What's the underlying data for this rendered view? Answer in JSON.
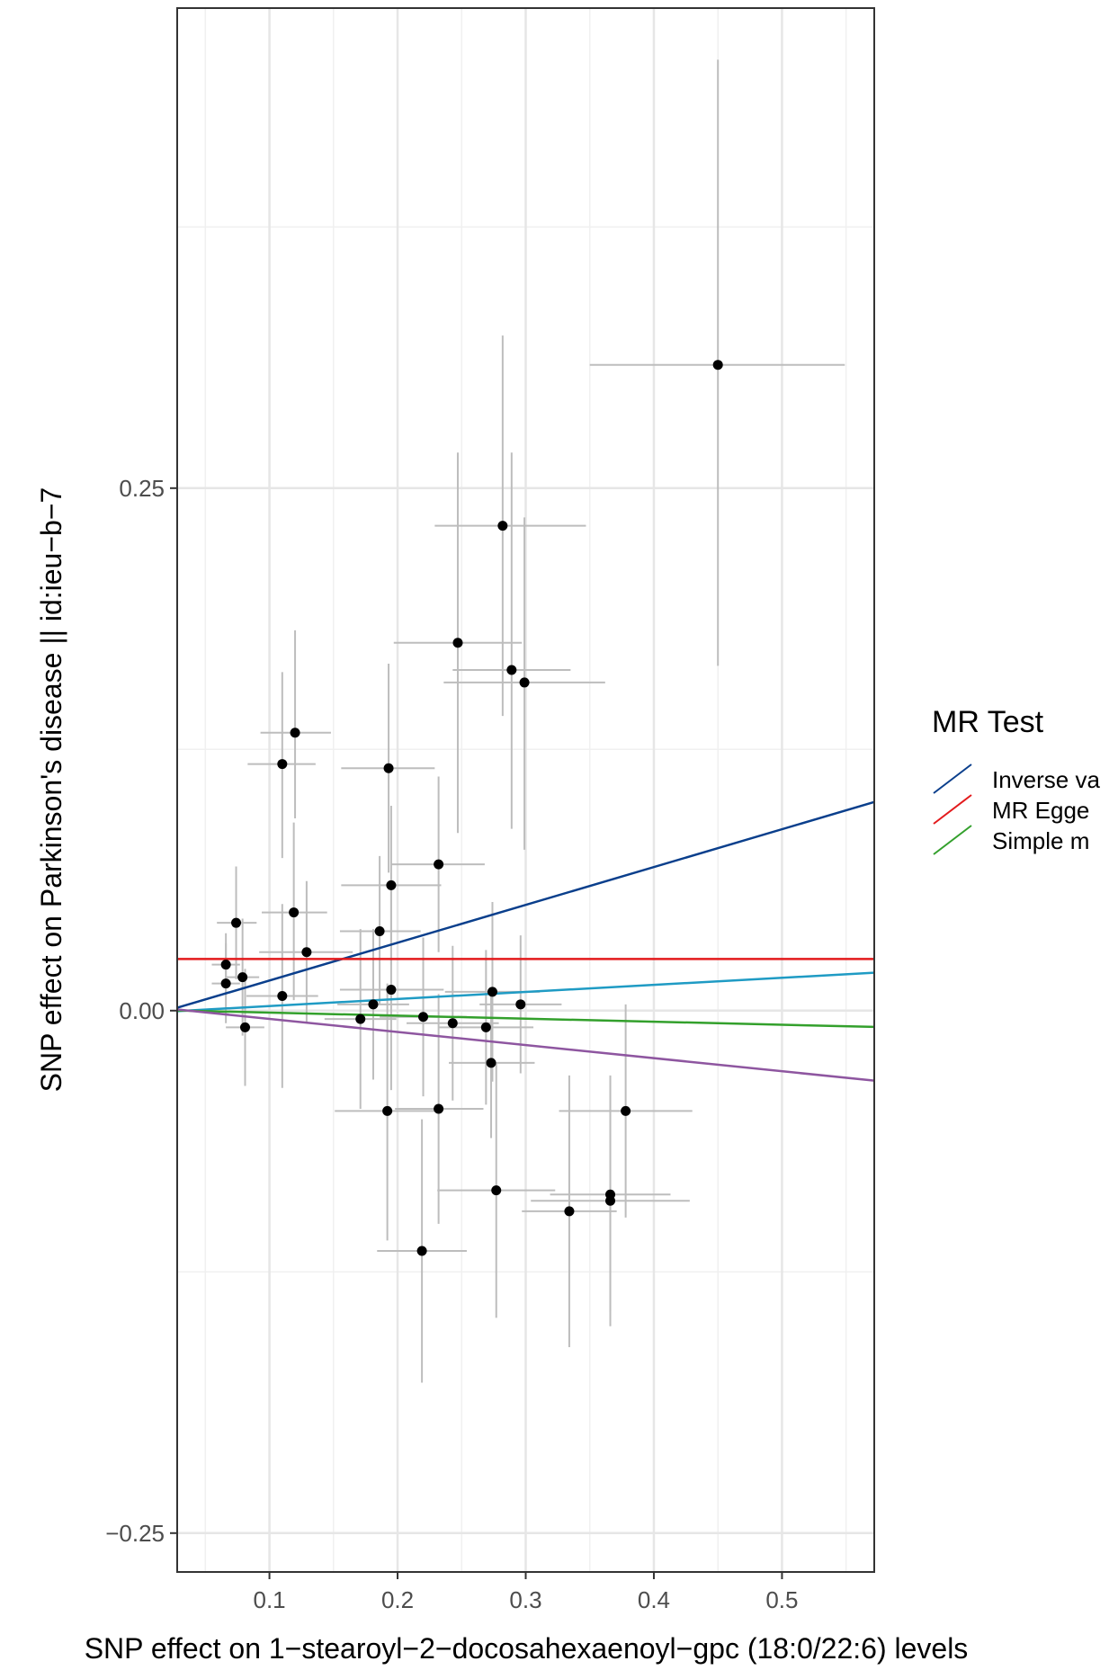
{
  "chart_data": {
    "type": "scatter",
    "title": "",
    "xlabel": "SNP effect on 1−stearoyl−2−docosahexaenoyl−gpc (18:0/22:6) levels",
    "ylabel": "SNP effect on Parkinson's disease || id:ieu−b−7",
    "xlim": [
      0.028,
      0.572
    ],
    "ylim": [
      -0.2686,
      0.4797
    ],
    "x_ticks": [
      {
        "value": 0.1,
        "label": "0.1"
      },
      {
        "value": 0.2,
        "label": "0.2"
      },
      {
        "value": 0.3,
        "label": "0.3"
      },
      {
        "value": 0.4,
        "label": "0.4"
      },
      {
        "value": 0.5,
        "label": "0.5"
      }
    ],
    "y_ticks": [
      {
        "value": 0.25,
        "label": "0.25"
      },
      {
        "value": 0.0,
        "label": "0.00"
      },
      {
        "value": -0.25,
        "label": "−0.25"
      }
    ],
    "x_minor_grid": [
      0.05,
      0.15,
      0.25,
      0.35,
      0.45,
      0.55
    ],
    "y_minor_grid": [
      0.375,
      0.125,
      -0.125
    ],
    "grid": true,
    "legend": {
      "title": "MR Test",
      "position": "right",
      "entries": [
        {
          "label": "Inverse va",
          "color": "#0a3f8c"
        },
        {
          "label": "MR Egge",
          "color": "#e31a1c"
        },
        {
          "label": "Simple m",
          "color": "#33a02c"
        }
      ]
    },
    "lines": [
      {
        "label": "Inverse va",
        "color": "#0a3f8c",
        "y_intercept": -0.0037,
        "slope": 0.181
      },
      {
        "label": "MR Egge",
        "color": "#e31a1c",
        "y_intercept": 0.0247,
        "slope": 0.0
      },
      {
        "label": "",
        "color": "#1f9bc4",
        "y_intercept": -0.0012,
        "slope": 0.0338
      },
      {
        "label": "Simple m",
        "color": "#33a02c",
        "y_intercept": 0.0005,
        "slope": -0.0145
      },
      {
        "label": "",
        "color": "#8e56a0",
        "y_intercept": 0.0023,
        "slope": -0.0626
      }
    ],
    "points": [
      {
        "x": 0.45,
        "y": 0.309,
        "xlo": 0.35,
        "xhi": 0.549,
        "ylo": 0.165,
        "yhi": 0.455
      },
      {
        "x": 0.282,
        "y": 0.232,
        "xlo": 0.229,
        "xhi": 0.347,
        "ylo": 0.141,
        "yhi": 0.323
      },
      {
        "x": 0.247,
        "y": 0.176,
        "xlo": 0.197,
        "xhi": 0.297,
        "ylo": 0.085,
        "yhi": 0.267
      },
      {
        "x": 0.289,
        "y": 0.163,
        "xlo": 0.243,
        "xhi": 0.335,
        "ylo": 0.087,
        "yhi": 0.267
      },
      {
        "x": 0.299,
        "y": 0.157,
        "xlo": 0.236,
        "xhi": 0.362,
        "ylo": 0.077,
        "yhi": 0.236
      },
      {
        "x": 0.12,
        "y": 0.133,
        "xlo": 0.093,
        "xhi": 0.148,
        "ylo": 0.092,
        "yhi": 0.182
      },
      {
        "x": 0.11,
        "y": 0.118,
        "xlo": 0.083,
        "xhi": 0.136,
        "ylo": 0.073,
        "yhi": 0.162
      },
      {
        "x": 0.193,
        "y": 0.116,
        "xlo": 0.156,
        "xhi": 0.229,
        "ylo": 0.066,
        "yhi": 0.166
      },
      {
        "x": 0.232,
        "y": 0.07,
        "xlo": 0.195,
        "xhi": 0.268,
        "ylo": 0.028,
        "yhi": 0.112
      },
      {
        "x": 0.195,
        "y": 0.06,
        "xlo": 0.156,
        "xhi": 0.234,
        "ylo": 0.022,
        "yhi": 0.098
      },
      {
        "x": 0.119,
        "y": 0.047,
        "xlo": 0.094,
        "xhi": 0.145,
        "ylo": 0.005,
        "yhi": 0.09
      },
      {
        "x": 0.074,
        "y": 0.042,
        "xlo": 0.059,
        "xhi": 0.09,
        "ylo": 0.015,
        "yhi": 0.069
      },
      {
        "x": 0.186,
        "y": 0.038,
        "xlo": 0.155,
        "xhi": 0.218,
        "ylo": 0.003,
        "yhi": 0.074
      },
      {
        "x": 0.129,
        "y": 0.028,
        "xlo": 0.092,
        "xhi": 0.165,
        "ylo": -0.006,
        "yhi": 0.062
      },
      {
        "x": 0.066,
        "y": 0.022,
        "xlo": 0.055,
        "xhi": 0.077,
        "ylo": 0.007,
        "yhi": 0.037
      },
      {
        "x": 0.079,
        "y": 0.016,
        "xlo": 0.066,
        "xhi": 0.092,
        "ylo": -0.012,
        "yhi": 0.044
      },
      {
        "x": 0.066,
        "y": 0.013,
        "xlo": 0.055,
        "xhi": 0.077,
        "ylo": -0.006,
        "yhi": 0.032
      },
      {
        "x": 0.195,
        "y": 0.01,
        "xlo": 0.155,
        "xhi": 0.236,
        "ylo": -0.038,
        "yhi": 0.058
      },
      {
        "x": 0.274,
        "y": 0.009,
        "xlo": 0.237,
        "xhi": 0.311,
        "ylo": -0.034,
        "yhi": 0.052
      },
      {
        "x": 0.11,
        "y": 0.007,
        "xlo": 0.082,
        "xhi": 0.138,
        "ylo": -0.037,
        "yhi": 0.051
      },
      {
        "x": 0.296,
        "y": 0.003,
        "xlo": 0.264,
        "xhi": 0.328,
        "ylo": -0.03,
        "yhi": 0.036
      },
      {
        "x": 0.181,
        "y": 0.003,
        "xlo": 0.153,
        "xhi": 0.209,
        "ylo": -0.033,
        "yhi": 0.039
      },
      {
        "x": 0.171,
        "y": -0.004,
        "xlo": 0.143,
        "xhi": 0.199,
        "ylo": -0.047,
        "yhi": 0.039
      },
      {
        "x": 0.22,
        "y": -0.003,
        "xlo": 0.186,
        "xhi": 0.254,
        "ylo": -0.041,
        "yhi": 0.035
      },
      {
        "x": 0.243,
        "y": -0.006,
        "xlo": 0.207,
        "xhi": 0.279,
        "ylo": -0.043,
        "yhi": 0.031
      },
      {
        "x": 0.081,
        "y": -0.008,
        "xlo": 0.066,
        "xhi": 0.096,
        "ylo": -0.036,
        "yhi": 0.02
      },
      {
        "x": 0.269,
        "y": -0.008,
        "xlo": 0.232,
        "xhi": 0.306,
        "ylo": -0.045,
        "yhi": 0.029
      },
      {
        "x": 0.273,
        "y": -0.025,
        "xlo": 0.24,
        "xhi": 0.307,
        "ylo": -0.061,
        "yhi": 0.01
      },
      {
        "x": 0.192,
        "y": -0.048,
        "xlo": 0.151,
        "xhi": 0.234,
        "ylo": -0.11,
        "yhi": 0.013
      },
      {
        "x": 0.232,
        "y": -0.047,
        "xlo": 0.198,
        "xhi": 0.267,
        "ylo": -0.102,
        "yhi": 0.008
      },
      {
        "x": 0.378,
        "y": -0.048,
        "xlo": 0.326,
        "xhi": 0.43,
        "ylo": -0.099,
        "yhi": 0.003
      },
      {
        "x": 0.277,
        "y": -0.086,
        "xlo": 0.231,
        "xhi": 0.323,
        "ylo": -0.147,
        "yhi": -0.025
      },
      {
        "x": 0.366,
        "y": -0.088,
        "xlo": 0.319,
        "xhi": 0.413,
        "ylo": -0.144,
        "yhi": -0.032
      },
      {
        "x": 0.366,
        "y": -0.091,
        "xlo": 0.304,
        "xhi": 0.428,
        "ylo": -0.151,
        "yhi": -0.031
      },
      {
        "x": 0.334,
        "y": -0.096,
        "xlo": 0.297,
        "xhi": 0.371,
        "ylo": -0.161,
        "yhi": -0.031
      },
      {
        "x": 0.219,
        "y": -0.115,
        "xlo": 0.184,
        "xhi": 0.254,
        "ylo": -0.178,
        "yhi": -0.052
      }
    ]
  }
}
